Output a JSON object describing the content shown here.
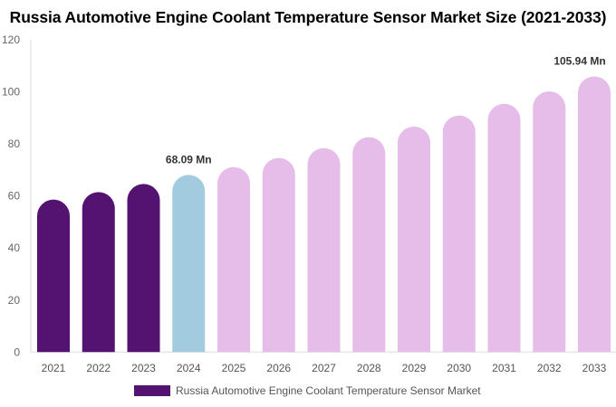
{
  "chart_data": {
    "type": "bar",
    "title": "Russia Automotive Engine Coolant Temperature Sensor Market Size (2021-2033)",
    "categories": [
      "2021",
      "2022",
      "2023",
      "2024",
      "2025",
      "2026",
      "2027",
      "2028",
      "2029",
      "2030",
      "2031",
      "2032",
      "2033"
    ],
    "series": [
      {
        "name": "Russia Automotive Engine Coolant Temperature Sensor Market",
        "values": [
          58.6,
          61.5,
          64.6,
          68.09,
          71.1,
          74.6,
          78.4,
          82.6,
          86.7,
          90.9,
          95.4,
          100.2,
          105.94
        ]
      }
    ],
    "data_labels": [
      {
        "category": "2024",
        "text": "68.09 Mn"
      },
      {
        "category": "2033",
        "text": "105.94 Mn"
      }
    ],
    "ylim": [
      0,
      120
    ],
    "yticks": [
      0,
      20,
      40,
      60,
      80,
      100,
      120
    ],
    "colors": {
      "historical": "#541271",
      "base_year": "#a3cbe0",
      "forecast": "#e6bde9"
    },
    "grid": false,
    "legend_position": "bottom"
  }
}
